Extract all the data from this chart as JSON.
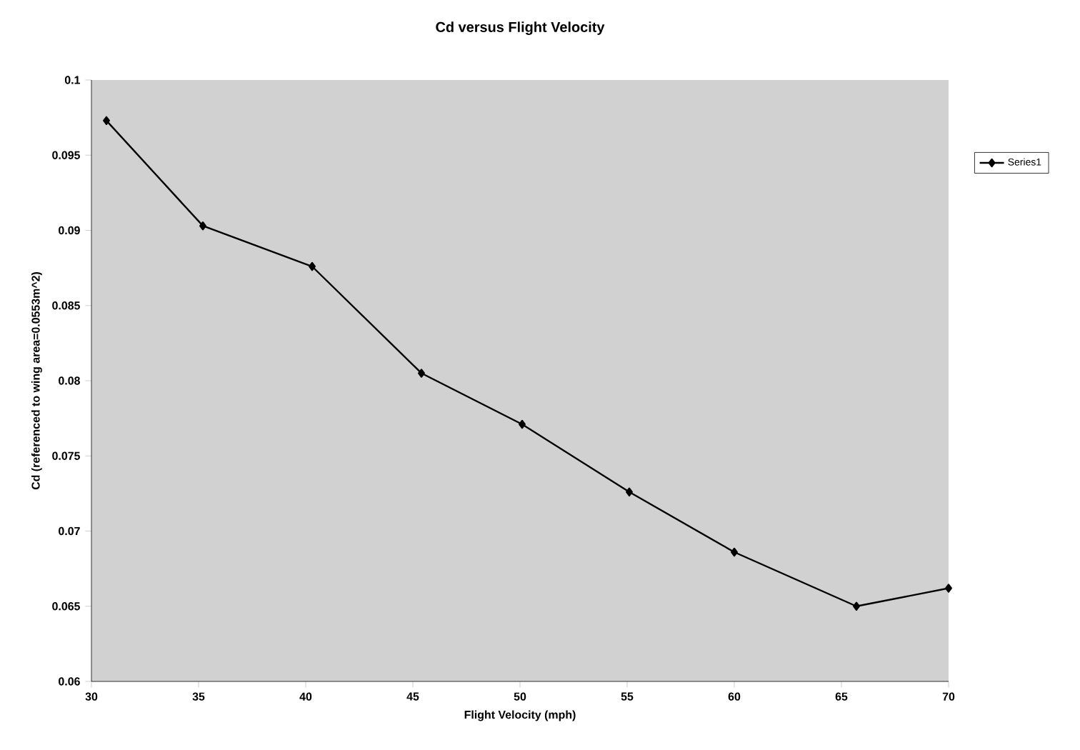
{
  "chart_data": {
    "type": "line",
    "title": "Cd versus Flight Velocity",
    "xlabel": "Flight Velocity (mph)",
    "ylabel": "Cd (referenced to wing area=0.0553m^2)",
    "x": [
      30.7,
      35.2,
      40.3,
      45.4,
      50.1,
      55.1,
      60.0,
      65.7,
      70.0
    ],
    "series": [
      {
        "name": "Series1",
        "color": "#000000",
        "values": [
          0.0973,
          0.0903,
          0.0876,
          0.0805,
          0.0771,
          0.0726,
          0.0686,
          0.065,
          0.0662
        ]
      }
    ],
    "xlim": [
      30,
      70
    ],
    "xticks": [
      30,
      35,
      40,
      45,
      50,
      55,
      60,
      65,
      70
    ],
    "ylim": [
      0.06,
      0.1
    ],
    "yticks": [
      0.06,
      0.065,
      0.07,
      0.075,
      0.08,
      0.085,
      0.09,
      0.095,
      0.1
    ],
    "grid": false,
    "legend": "right",
    "marker": "diamond",
    "line_style": "solid"
  }
}
